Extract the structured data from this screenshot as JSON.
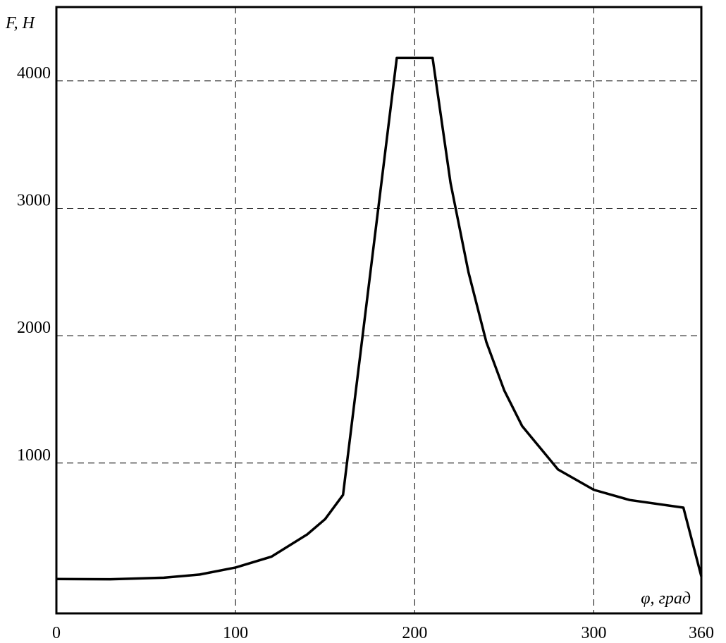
{
  "chart_data": {
    "type": "line",
    "ylabel": "F, Н",
    "xlabel": "φ, град",
    "x": [
      0,
      30,
      60,
      80,
      100,
      120,
      140,
      150,
      160,
      190,
      210,
      220,
      230,
      240,
      250,
      260,
      280,
      300,
      320,
      350,
      360
    ],
    "values": [
      90,
      88,
      100,
      125,
      180,
      265,
      440,
      560,
      750,
      4180,
      4180,
      3200,
      2500,
      1950,
      1570,
      1290,
      950,
      790,
      710,
      650,
      110
    ],
    "color": "#000000",
    "xlim": [
      0,
      360
    ],
    "ylim": [
      -180,
      4580
    ],
    "xticks": [
      0,
      100,
      200,
      300,
      360
    ],
    "yticks": [
      1000,
      2000,
      3000,
      4000
    ],
    "grid": true
  }
}
